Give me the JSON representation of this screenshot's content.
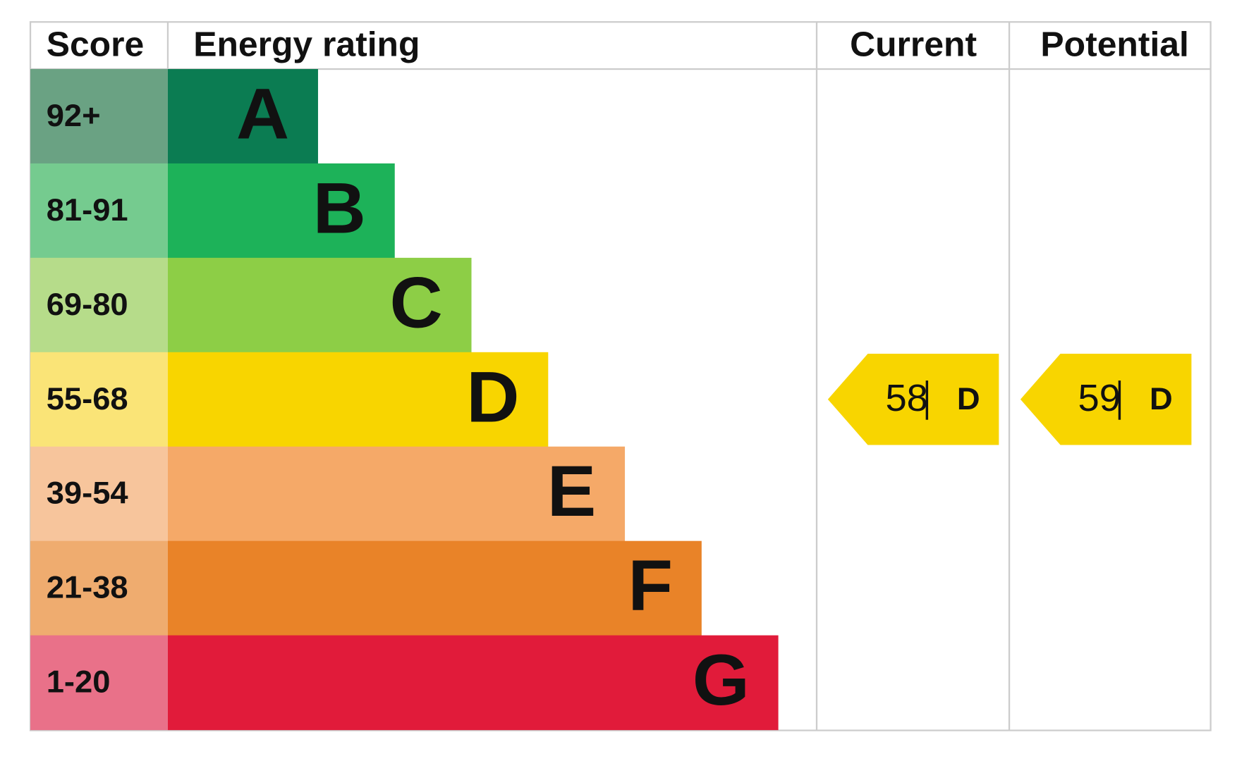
{
  "header": {
    "score": "Score",
    "energy_rating": "Energy rating",
    "current": "Current",
    "potential": "Potential"
  },
  "rows": [
    {
      "score": "92+",
      "rating": "A",
      "color": "#0b7c52",
      "score_color": "#6aa283"
    },
    {
      "score": "81-91",
      "rating": "B",
      "color": "#1db259",
      "score_color": "#75cb8f"
    },
    {
      "score": "69-80",
      "rating": "C",
      "color": "#8dce46",
      "score_color": "#b6dc8a"
    },
    {
      "score": "55-68",
      "rating": "D",
      "color": "#f8d500",
      "score_color": "#fae477"
    },
    {
      "score": "39-54",
      "rating": "E",
      "color": "#f5a968",
      "score_color": "#f7c59c"
    },
    {
      "score": "21-38",
      "rating": "F",
      "color": "#e98328",
      "score_color": "#efac6f"
    },
    {
      "score": "1-20",
      "rating": "G",
      "color": "#e11b3a",
      "score_color": "#e97189"
    }
  ],
  "current": {
    "value": 58,
    "rating": "D"
  },
  "potential": {
    "value": 59,
    "rating": "D"
  }
}
